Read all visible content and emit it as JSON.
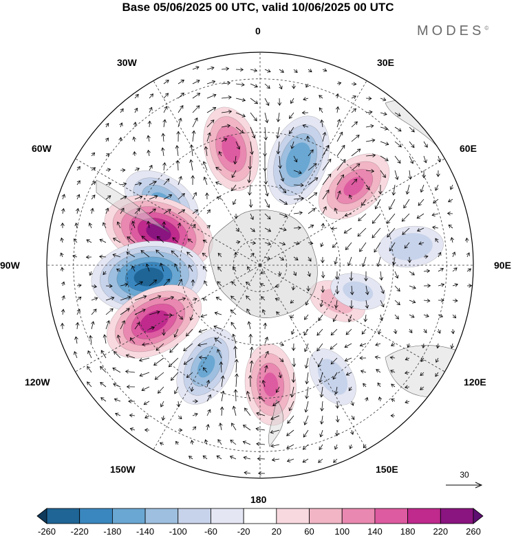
{
  "title": "Base 05/06/2025 00 UTC, valid 10/06/2025 00 UTC",
  "brand": "MODES",
  "brand_mark": "©",
  "longitude_labels": {
    "top": "0",
    "bottom": "180",
    "left": "90W",
    "right": "90E",
    "w30": "30W",
    "e30": "30E",
    "w60": "60W",
    "e60": "60E",
    "w120": "120W",
    "e120": "120E",
    "w150": "150W",
    "e150": "150E"
  },
  "reference_vector_label": "30",
  "colorbar": {
    "ticks": [
      "-260",
      "-220",
      "-180",
      "-140",
      "-100",
      "-60",
      "-20",
      "20",
      "60",
      "100",
      "140",
      "180",
      "220",
      "260"
    ],
    "colors": [
      "#0f3a5c",
      "#1f6596",
      "#3a87bf",
      "#6aa7d2",
      "#9ebfdf",
      "#c7d3ea",
      "#e4e6f3",
      "#ffffff",
      "#f8d9df",
      "#f1b5c5",
      "#e988b0",
      "#dd5ba0",
      "#bf2a8c",
      "#8a1480",
      "#5d0f72"
    ]
  },
  "anomaly_centers": [
    {
      "lon": -14,
      "lat": -45,
      "value": 150
    },
    {
      "lon": 20,
      "lat": -48,
      "value": -170
    },
    {
      "lon": 50,
      "lat": -44,
      "value": 140
    },
    {
      "lon": -57,
      "lat": -46,
      "value": -140
    },
    {
      "lon": -72,
      "lat": -50,
      "value": 230
    },
    {
      "lon": -96,
      "lat": -48,
      "value": -240
    },
    {
      "lon": -118,
      "lat": -45,
      "value": 200
    },
    {
      "lon": -152,
      "lat": -47,
      "value": -140
    },
    {
      "lon": 175,
      "lat": -45,
      "value": 140
    },
    {
      "lon": 147,
      "lat": -40,
      "value": -80
    },
    {
      "lon": 83,
      "lat": -33,
      "value": -90
    },
    {
      "lon": 115,
      "lat": -58,
      "value": 70
    },
    {
      "lon": 105,
      "lat": -52,
      "value": -60
    }
  ]
}
